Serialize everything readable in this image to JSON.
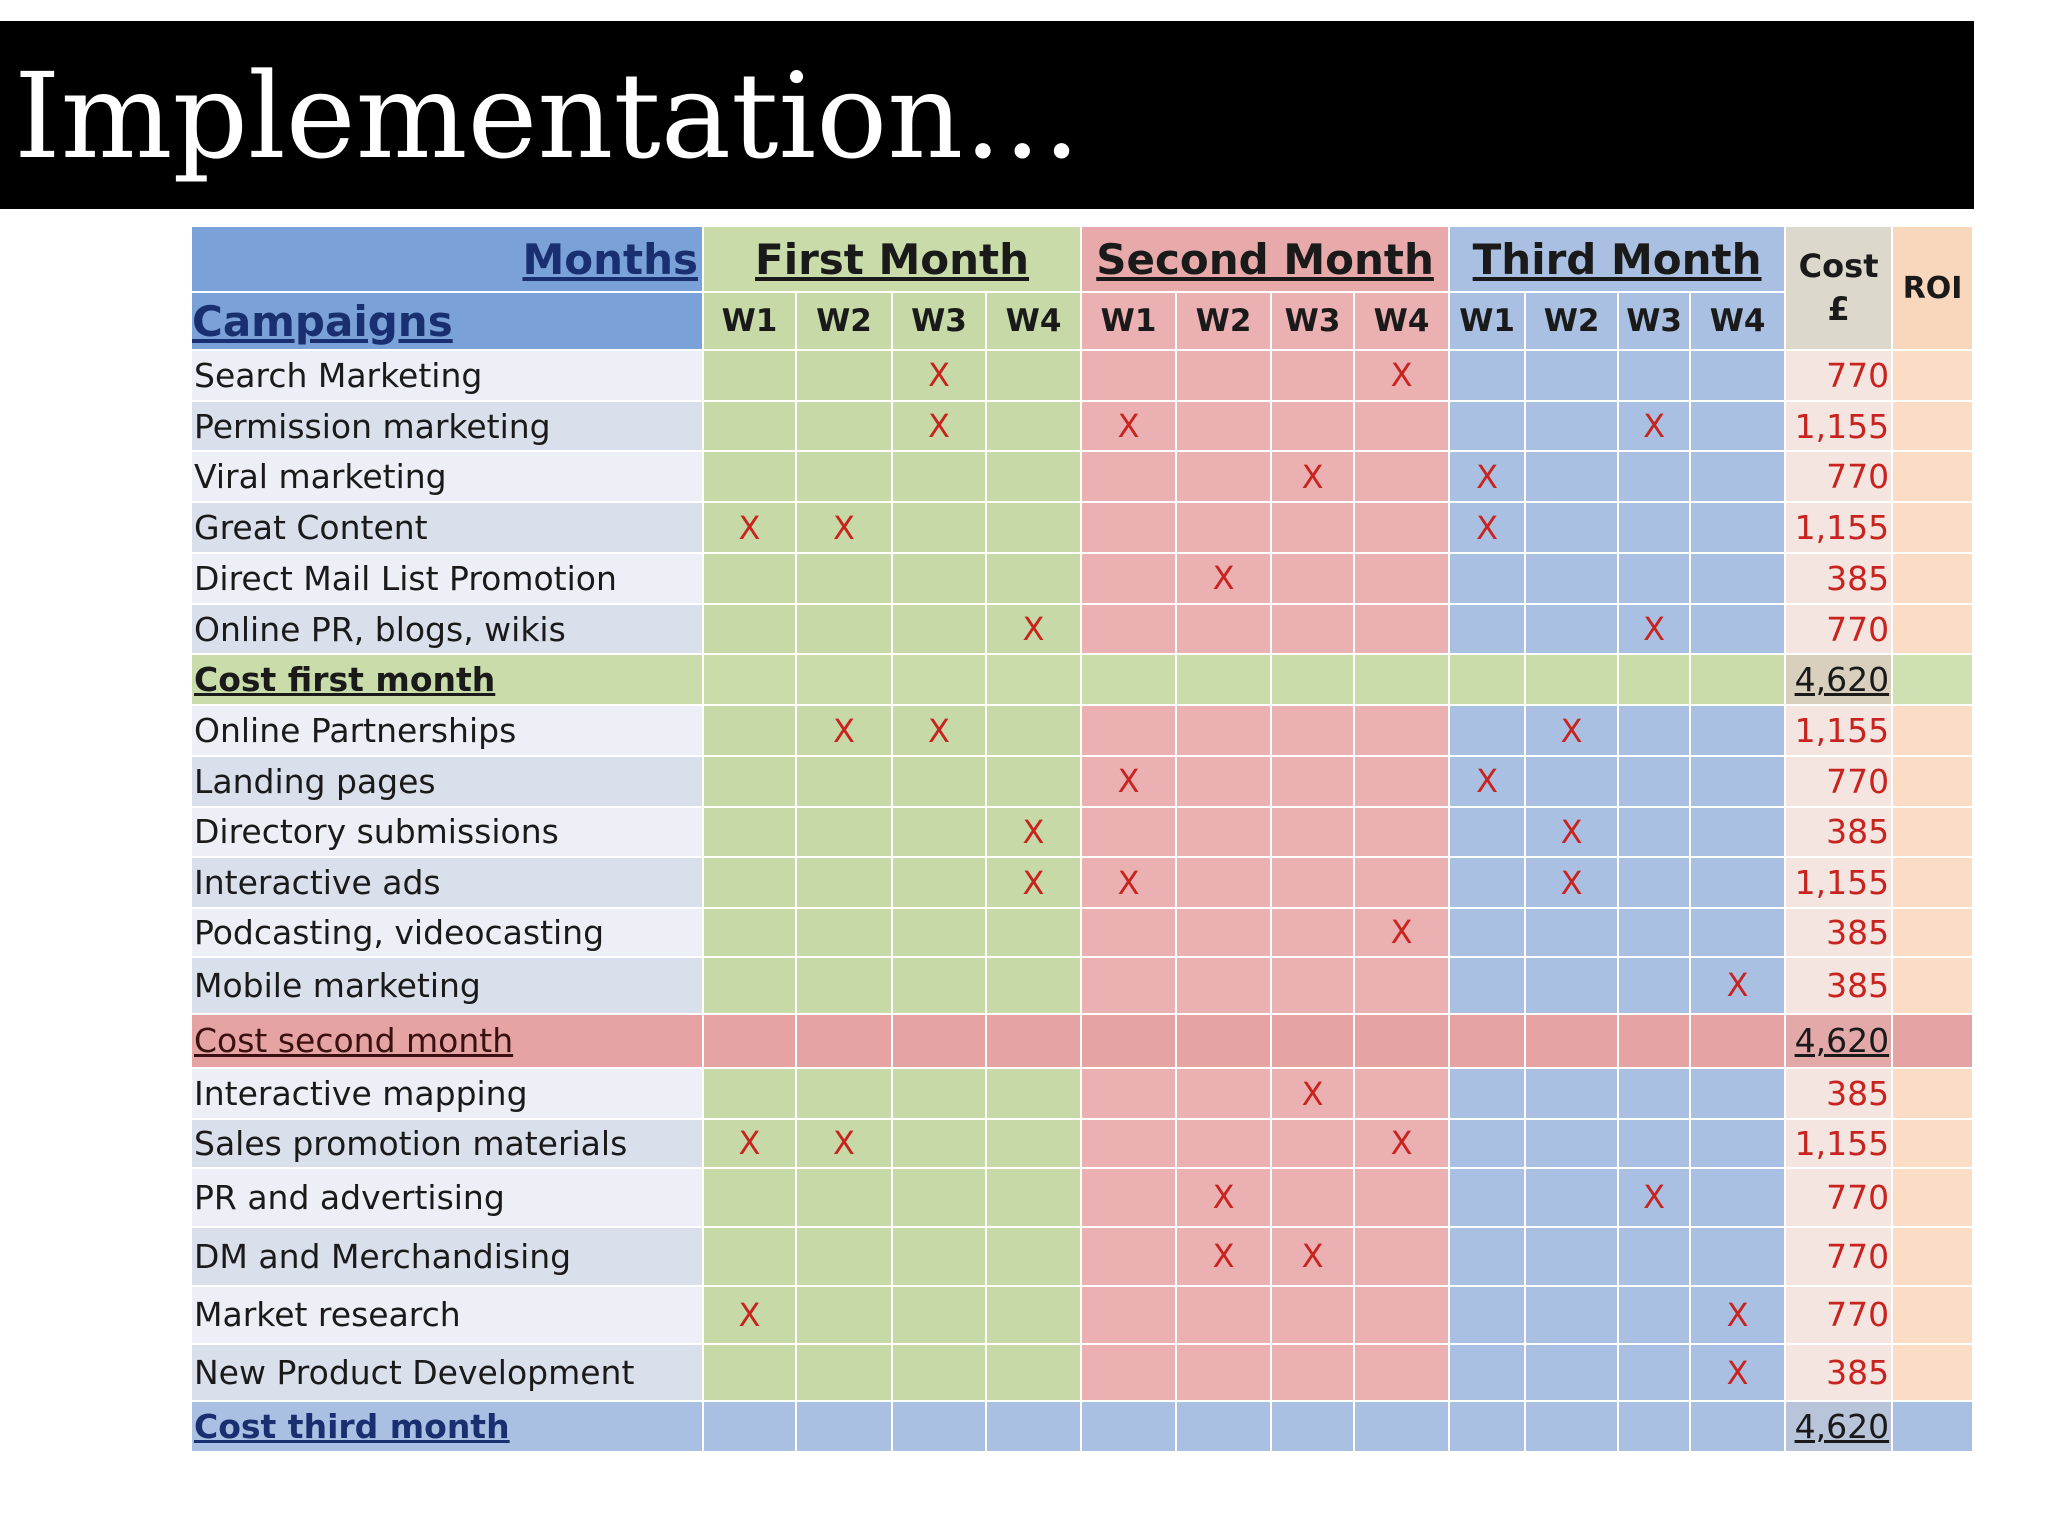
{
  "title": "Implementation…",
  "table": {
    "months_label": "Months",
    "campaigns_label": "Campaigns",
    "month_names": [
      "First Month",
      "Second Month",
      "Third Month"
    ],
    "weeks": [
      "W1",
      "W2",
      "W3",
      "W4",
      "W1",
      "W2",
      "W3",
      "W4",
      "W1",
      "W2",
      "W3",
      "W4"
    ],
    "cost_header": [
      "Cost",
      "£"
    ],
    "roi_header": "ROI",
    "mark": "X",
    "rows": [
      {
        "type": "item",
        "label": "Search Marketing",
        "marks": [
          3,
          8
        ],
        "cost": "770"
      },
      {
        "type": "item",
        "label": "Permission marketing",
        "marks": [
          3,
          5,
          11
        ],
        "cost": "1,155"
      },
      {
        "type": "item",
        "label": "Viral marketing",
        "marks": [
          7,
          9
        ],
        "cost": "770"
      },
      {
        "type": "item",
        "label": "Great Content",
        "marks": [
          1,
          2,
          9
        ],
        "cost": "1,155"
      },
      {
        "type": "item",
        "label": "Direct Mail List Promotion",
        "marks": [
          6
        ],
        "cost": "385"
      },
      {
        "type": "item",
        "label": "Online PR, blogs, wikis",
        "marks": [
          4,
          11
        ],
        "cost": "770"
      },
      {
        "type": "total",
        "label": "Cost first month",
        "cost": "4,620",
        "month": 1
      },
      {
        "type": "item",
        "label": "Online Partnerships",
        "marks": [
          2,
          3,
          10
        ],
        "cost": "1,155"
      },
      {
        "type": "item",
        "label": "Landing pages",
        "marks": [
          5,
          9
        ],
        "cost": "770"
      },
      {
        "type": "item",
        "label": "Directory submissions",
        "marks": [
          4,
          10
        ],
        "cost": "385"
      },
      {
        "type": "item",
        "label": "Interactive ads",
        "marks": [
          4,
          5,
          10
        ],
        "cost": "1,155"
      },
      {
        "type": "item",
        "label": "Podcasting, videocasting",
        "marks": [
          8
        ],
        "cost": "385"
      },
      {
        "type": "item",
        "label": "Mobile marketing",
        "marks": [
          12
        ],
        "cost": "385"
      },
      {
        "type": "total",
        "label": "Cost second month",
        "cost": "4,620",
        "month": 2
      },
      {
        "type": "item",
        "label": "Interactive mapping",
        "marks": [
          7
        ],
        "cost": "385"
      },
      {
        "type": "item",
        "label": "Sales promotion materials",
        "marks": [
          1,
          2,
          8
        ],
        "cost": "1,155"
      },
      {
        "type": "item",
        "label": "PR and advertising",
        "marks": [
          6,
          11
        ],
        "cost": "770"
      },
      {
        "type": "item",
        "label": "DM and Merchandising",
        "marks": [
          6,
          7
        ],
        "cost": "770"
      },
      {
        "type": "item",
        "label": "Market research",
        "marks": [
          1,
          12
        ],
        "cost": "770"
      },
      {
        "type": "item",
        "label": "New Product Development",
        "marks": [
          12
        ],
        "cost": "385"
      },
      {
        "type": "total",
        "label": "Cost third month",
        "cost": "4,620",
        "month": 3
      }
    ]
  }
}
